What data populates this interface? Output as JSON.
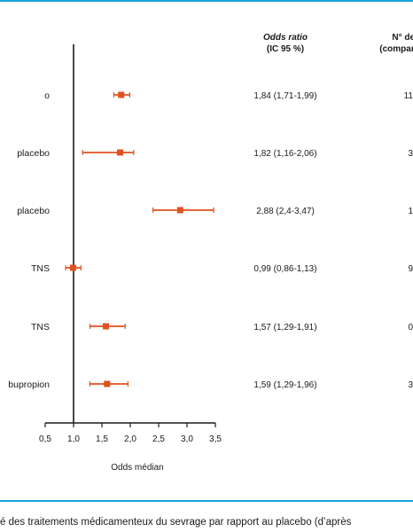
{
  "colors": {
    "accent": "#e0511f",
    "rule": "#1aa3dc",
    "axis": "#1a1a1a"
  },
  "headers": {
    "odds_ratio": [
      "Odds ratio",
      "(IC 95 %)"
    ],
    "n_studies": [
      "N° de l",
      "(comparaiso"
    ]
  },
  "caption": "é des traitements médicamenteux du sevrage par rapport au placebo (d’après",
  "chart_data": {
    "type": "forest",
    "xlabel": "Odds médian",
    "xlim": [
      0.5,
      3.5
    ],
    "xticks": [
      "0,5",
      "1,0",
      "1,5",
      "2,0",
      "2,5",
      "3,0",
      "3,5"
    ],
    "reference_line": 1.0,
    "rows": [
      {
        "label": "o",
        "or": 1.84,
        "lo": 1.71,
        "hi": 1.99,
        "ci_text": "1,84 (1,71-1,99)",
        "n": "11"
      },
      {
        "label": "placebo",
        "or": 1.82,
        "lo": 1.16,
        "hi": 2.06,
        "ci_text": "1,82 (1,16-2,06)",
        "n": "3"
      },
      {
        "label": "placebo",
        "or": 2.88,
        "lo": 2.4,
        "hi": 3.47,
        "ci_text": "2,88 (2,4-3,47)",
        "n": "1"
      },
      {
        "label": "TNS",
        "or": 0.99,
        "lo": 0.86,
        "hi": 1.13,
        "ci_text": "0,99 (0,86-1,13)",
        "n": "9"
      },
      {
        "label": "TNS",
        "or": 1.57,
        "lo": 1.29,
        "hi": 1.91,
        "ci_text": "1,57 (1,29-1,91)",
        "n": "0"
      },
      {
        "label": "bupropion",
        "or": 1.59,
        "lo": 1.29,
        "hi": 1.96,
        "ci_text": "1,59 (1,29-1,96)",
        "n": "3"
      }
    ]
  }
}
